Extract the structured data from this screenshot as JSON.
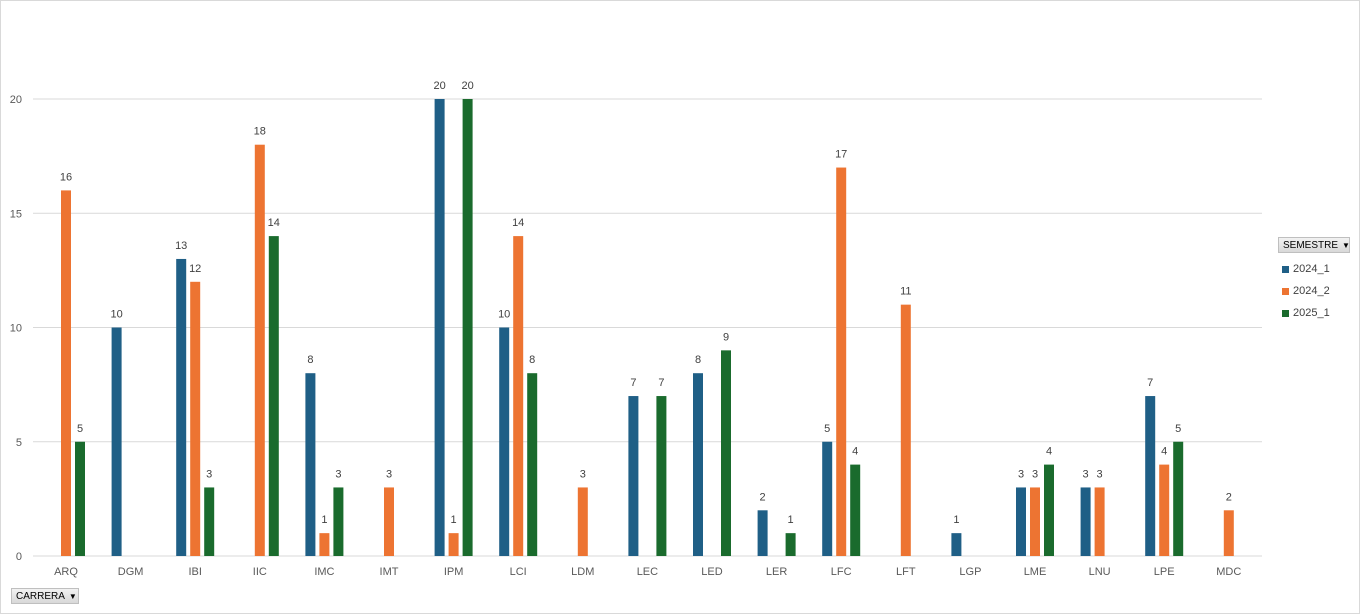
{
  "legend_field": "SEMESTRE",
  "axis_field": "CARRERA",
  "dropdown_glyph": "▼",
  "chart_data": {
    "type": "bar",
    "title": "",
    "xlabel": "",
    "ylabel": "",
    "ylim": [
      0,
      20
    ],
    "yticks": [
      0,
      5,
      10,
      15,
      20
    ],
    "grid": true,
    "legend_position": "right",
    "categories": [
      "ARQ",
      "DGM",
      "IBI",
      "IIC",
      "IMC",
      "IMT",
      "IPM",
      "LCI",
      "LDM",
      "LEC",
      "LED",
      "LER",
      "LFC",
      "LFT",
      "LGP",
      "LME",
      "LNU",
      "LPE",
      "MDC"
    ],
    "series": [
      {
        "name": "2024_1",
        "color": "#1f5f86",
        "values": [
          null,
          10,
          13,
          null,
          8,
          null,
          20,
          10,
          null,
          7,
          8,
          2,
          5,
          null,
          1,
          3,
          3,
          7,
          null
        ]
      },
      {
        "name": "2024_2",
        "color": "#ed7432",
        "values": [
          16,
          null,
          12,
          18,
          1,
          3,
          1,
          14,
          3,
          null,
          null,
          null,
          17,
          11,
          null,
          3,
          3,
          4,
          2
        ]
      },
      {
        "name": "2025_1",
        "color": "#1a6b2d",
        "values": [
          5,
          null,
          3,
          14,
          3,
          null,
          20,
          8,
          null,
          7,
          9,
          1,
          4,
          null,
          null,
          4,
          null,
          5,
          null
        ]
      }
    ]
  }
}
